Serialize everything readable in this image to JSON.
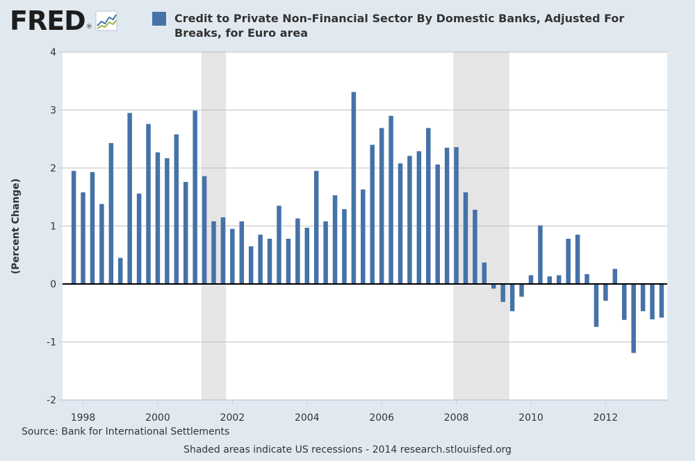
{
  "logo": {
    "text": "FRED",
    "reg": "®",
    "icon": "line-graph-icon"
  },
  "chart_data": {
    "type": "bar",
    "title": "Credit to Private Non-Financial Sector By Domestic Banks, Adjusted For Breaks, for Euro area",
    "ylabel": "(Percent Change)",
    "ylim": [
      -2,
      4
    ],
    "yticks": [
      4,
      3,
      2,
      1,
      0,
      -1,
      -2
    ],
    "xlim": [
      1997.45,
      2013.65
    ],
    "xticks": [
      1998,
      2000,
      2002,
      2004,
      2006,
      2008,
      2010,
      2012
    ],
    "grid": true,
    "legend": "top",
    "bar_color": "#4572a7",
    "recession_color": "#e5e5e5",
    "recessions": [
      [
        2001.17,
        2001.83
      ],
      [
        2007.92,
        2009.42
      ]
    ],
    "series": [
      {
        "name": "Credit to Private Non-Financial Sector By Domestic Banks, Adjusted For Breaks, for Euro area",
        "start": 1997.75,
        "step": 0.25,
        "values": [
          1.95,
          1.58,
          1.93,
          1.38,
          2.43,
          0.45,
          2.95,
          1.56,
          2.76,
          2.27,
          2.17,
          2.58,
          1.76,
          2.99,
          1.86,
          1.08,
          1.15,
          0.95,
          1.08,
          0.65,
          0.85,
          0.78,
          1.35,
          0.78,
          1.13,
          0.97,
          1.95,
          1.08,
          1.53,
          1.29,
          3.31,
          1.63,
          2.4,
          2.69,
          2.9,
          2.08,
          2.21,
          2.29,
          2.69,
          2.06,
          2.35,
          2.36,
          1.58,
          1.28,
          0.37,
          -0.08,
          -0.31,
          -0.47,
          -0.22,
          0.15,
          1.01,
          0.13,
          0.15,
          0.78,
          0.85,
          0.17,
          -0.74,
          -0.29,
          0.26,
          -0.62,
          -1.19,
          -0.47,
          -0.61,
          -0.58
        ]
      }
    ]
  },
  "source_text": "Source: Bank for International Settlements",
  "footer_text": "Shaded areas indicate US recessions - 2014 research.stlouisfed.org"
}
